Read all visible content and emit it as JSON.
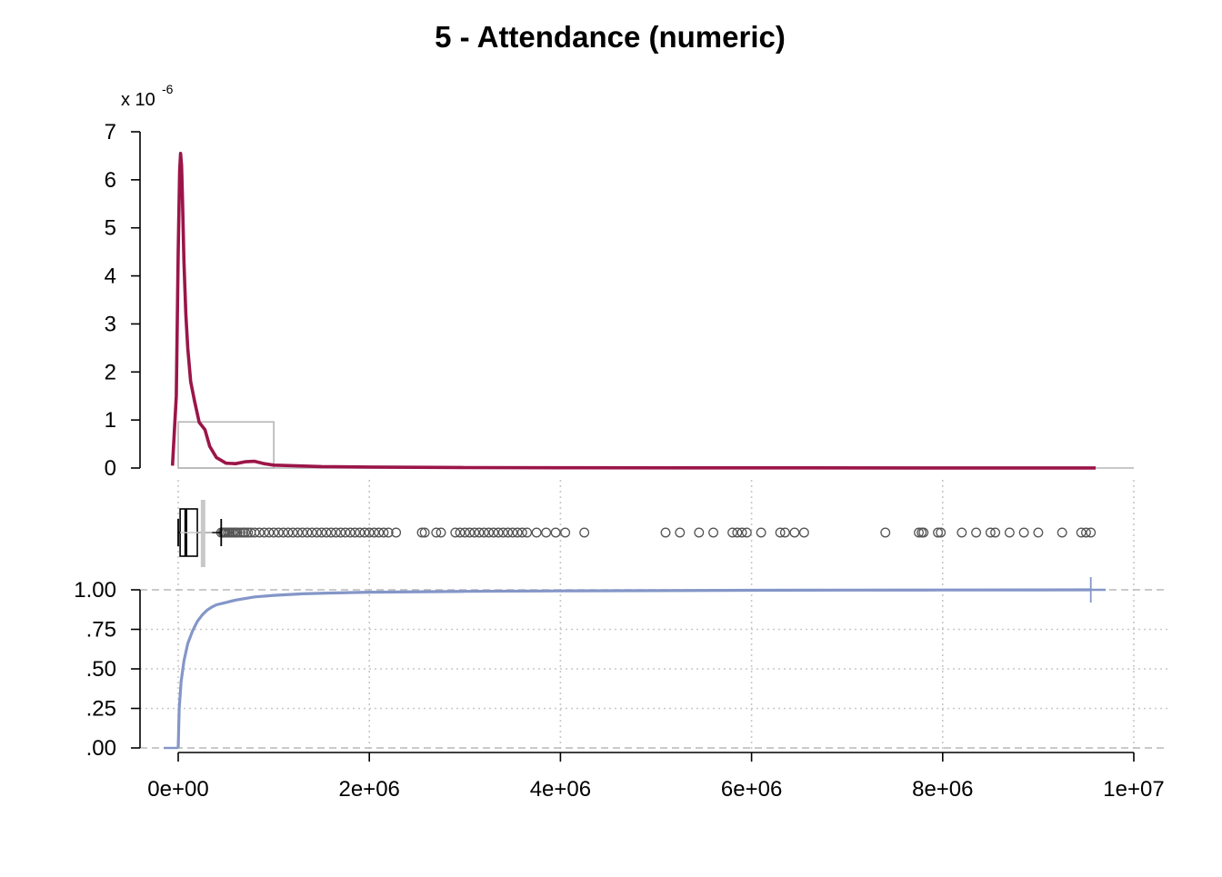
{
  "chart_data": {
    "title": "5 - Attendance (numeric)",
    "xlabel": "",
    "x_axis": {
      "range": [
        0,
        10000000
      ],
      "ticks": [
        0,
        2000000,
        4000000,
        6000000,
        8000000,
        10000000
      ],
      "tick_labels": [
        "0e+00",
        "2e+06",
        "4e+06",
        "6e+06",
        "8e+06",
        "1e+07"
      ]
    },
    "panels": [
      {
        "type": "line",
        "name": "density",
        "ylabel": "",
        "y_multiplier_label": "x 10",
        "y_multiplier_exponent": "-6",
        "ylim": [
          0,
          7
        ],
        "y_ticks": [
          0,
          1,
          2,
          3,
          4,
          5,
          6,
          7
        ],
        "y_tick_labels": [
          "0",
          "1",
          "2",
          "3",
          "4",
          "5",
          "6",
          "7"
        ],
        "color": "#9b1548",
        "x": [
          -60000,
          -20000,
          0,
          15000,
          25000,
          35000,
          45000,
          60000,
          80000,
          100000,
          130000,
          170000,
          220000,
          280000,
          330000,
          400000,
          500000,
          600000,
          700000,
          800000,
          900000,
          1000000,
          1200000,
          1500000,
          2000000,
          3000000,
          4000000,
          6000000,
          8000000,
          9600000
        ],
        "values": [
          0.05,
          1.5,
          4.5,
          6.2,
          6.55,
          6.3,
          5.6,
          4.3,
          3.2,
          2.5,
          1.8,
          1.4,
          0.95,
          0.8,
          0.45,
          0.22,
          0.1,
          0.09,
          0.13,
          0.14,
          0.09,
          0.06,
          0.05,
          0.03,
          0.02,
          0.01,
          0.005,
          0.003,
          0.002,
          0.001
        ],
        "ecdf_box_overlay": {
          "x_range": [
            0,
            1000000
          ],
          "height": 0.96,
          "color": "#b5b5b5"
        }
      },
      {
        "type": "box",
        "name": "boxplot",
        "q1": 20000,
        "median": 80000,
        "q3": 200000,
        "whisker_low": 0,
        "whisker_high": 450000,
        "mean": 260000,
        "outlier_color": "#555555",
        "outliers": [
          450000,
          470000,
          480000,
          490000,
          500000,
          520000,
          540000,
          560000,
          580000,
          600000,
          620000,
          650000,
          680000,
          700000,
          730000,
          760000,
          800000,
          850000,
          900000,
          950000,
          1000000,
          1050000,
          1100000,
          1150000,
          1200000,
          1250000,
          1300000,
          1350000,
          1400000,
          1450000,
          1500000,
          1550000,
          1600000,
          1650000,
          1700000,
          1750000,
          1800000,
          1850000,
          1900000,
          1950000,
          2000000,
          2050000,
          2100000,
          2150000,
          2200000,
          2280000,
          2550000,
          2580000,
          2700000,
          2750000,
          2900000,
          2950000,
          3000000,
          3050000,
          3100000,
          3150000,
          3200000,
          3250000,
          3300000,
          3350000,
          3400000,
          3450000,
          3500000,
          3550000,
          3600000,
          3650000,
          3750000,
          3850000,
          3950000,
          4050000,
          4250000,
          5100000,
          5250000,
          5450000,
          5600000,
          5800000,
          5850000,
          5900000,
          5950000,
          6100000,
          6300000,
          6350000,
          6450000,
          6550000,
          7400000,
          7750000,
          7780000,
          7800000,
          7950000,
          7980000,
          8200000,
          8350000,
          8500000,
          8550000,
          8700000,
          8850000,
          9000000,
          9250000,
          9450000,
          9500000,
          9550000
        ]
      },
      {
        "type": "line",
        "name": "ecdf",
        "ylabel": "",
        "ylim": [
          0,
          1
        ],
        "y_ticks": [
          0,
          0.25,
          0.5,
          0.75,
          1
        ],
        "y_tick_labels": [
          ".00",
          ".25",
          ".50",
          ".75",
          "1.00"
        ],
        "color": "#8496c8",
        "x": [
          0,
          10000,
          30000,
          60000,
          100000,
          150000,
          200000,
          250000,
          300000,
          350000,
          400000,
          500000,
          600000,
          800000,
          1000000,
          1300000,
          1600000,
          2000000,
          3000000,
          4000000,
          5000000,
          6000000,
          7000000,
          8000000,
          9000000,
          9550000
        ],
        "values": [
          0,
          0.25,
          0.42,
          0.55,
          0.66,
          0.74,
          0.8,
          0.84,
          0.87,
          0.89,
          0.905,
          0.92,
          0.935,
          0.955,
          0.965,
          0.975,
          0.98,
          0.985,
          0.99,
          0.993,
          0.995,
          0.997,
          0.998,
          0.999,
          0.9995,
          1.0
        ]
      }
    ]
  }
}
